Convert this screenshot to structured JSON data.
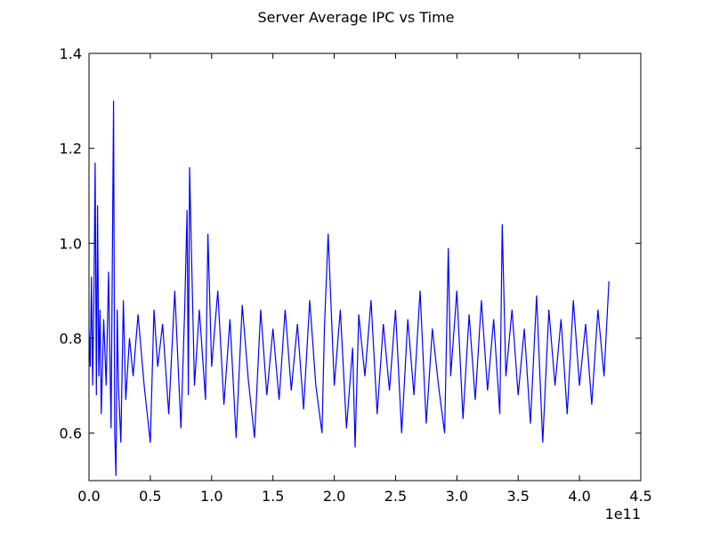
{
  "chart_data": {
    "type": "line",
    "title": "Server Average IPC vs Time",
    "xlabel": "",
    "ylabel": "",
    "x_offset_label": "1e11",
    "xlim": [
      0.0,
      4.5
    ],
    "ylim": [
      0.5,
      1.4
    ],
    "xticks": [
      "0.0",
      "0.5",
      "1.0",
      "1.5",
      "2.0",
      "2.5",
      "3.0",
      "3.5",
      "4.0",
      "4.5"
    ],
    "yticks": [
      "0.6",
      "0.8",
      "1.0",
      "1.2",
      "1.4"
    ],
    "xtick_values": [
      0.0,
      0.5,
      1.0,
      1.5,
      2.0,
      2.5,
      3.0,
      3.5,
      4.0,
      4.5
    ],
    "ytick_values": [
      0.6,
      0.8,
      1.0,
      1.2,
      1.4
    ],
    "grid": false,
    "legend": "none",
    "line_color": "#0000ff",
    "series": [
      {
        "x": [
          0.0,
          0.01,
          0.02,
          0.03,
          0.04,
          0.05,
          0.06,
          0.07,
          0.08,
          0.09,
          0.1,
          0.12,
          0.14,
          0.16,
          0.18,
          0.2,
          0.21,
          0.22,
          0.23,
          0.24,
          0.26,
          0.28,
          0.3,
          0.33,
          0.36,
          0.4,
          0.45,
          0.5,
          0.53,
          0.56,
          0.6,
          0.65,
          0.7,
          0.75,
          0.78,
          0.8,
          0.81,
          0.82,
          0.86,
          0.9,
          0.95,
          0.97,
          1.0,
          1.05,
          1.1,
          1.15,
          1.2,
          1.25,
          1.3,
          1.35,
          1.4,
          1.45,
          1.5,
          1.55,
          1.6,
          1.65,
          1.7,
          1.75,
          1.8,
          1.85,
          1.9,
          1.92,
          1.95,
          2.0,
          2.05,
          2.1,
          2.15,
          2.17,
          2.2,
          2.25,
          2.3,
          2.35,
          2.4,
          2.45,
          2.5,
          2.55,
          2.6,
          2.65,
          2.7,
          2.75,
          2.8,
          2.85,
          2.9,
          2.93,
          2.95,
          3.0,
          3.05,
          3.1,
          3.15,
          3.2,
          3.25,
          3.3,
          3.35,
          3.37,
          3.4,
          3.45,
          3.5,
          3.55,
          3.6,
          3.65,
          3.7,
          3.75,
          3.8,
          3.85,
          3.9,
          3.95,
          4.0,
          4.05,
          4.1,
          4.15,
          4.2,
          4.24
        ],
        "y": [
          0.82,
          0.74,
          0.93,
          0.7,
          0.88,
          1.17,
          0.68,
          1.08,
          0.72,
          0.86,
          0.64,
          0.84,
          0.7,
          0.94,
          0.61,
          1.3,
          0.6,
          0.51,
          0.86,
          0.7,
          0.58,
          0.88,
          0.67,
          0.8,
          0.72,
          0.85,
          0.7,
          0.58,
          0.86,
          0.74,
          0.83,
          0.64,
          0.9,
          0.61,
          0.86,
          1.07,
          0.68,
          1.16,
          0.7,
          0.86,
          0.67,
          1.02,
          0.74,
          0.9,
          0.66,
          0.84,
          0.59,
          0.87,
          0.71,
          0.59,
          0.86,
          0.68,
          0.82,
          0.67,
          0.86,
          0.69,
          0.83,
          0.65,
          0.88,
          0.7,
          0.6,
          0.82,
          1.02,
          0.7,
          0.86,
          0.61,
          0.78,
          0.57,
          0.85,
          0.72,
          0.88,
          0.64,
          0.83,
          0.69,
          0.86,
          0.6,
          0.84,
          0.68,
          0.9,
          0.62,
          0.82,
          0.7,
          0.6,
          0.99,
          0.72,
          0.9,
          0.63,
          0.85,
          0.67,
          0.88,
          0.69,
          0.84,
          0.64,
          1.04,
          0.72,
          0.86,
          0.68,
          0.82,
          0.62,
          0.89,
          0.58,
          0.86,
          0.7,
          0.84,
          0.64,
          0.88,
          0.7,
          0.83,
          0.66,
          0.86,
          0.72,
          0.92
        ]
      }
    ]
  }
}
